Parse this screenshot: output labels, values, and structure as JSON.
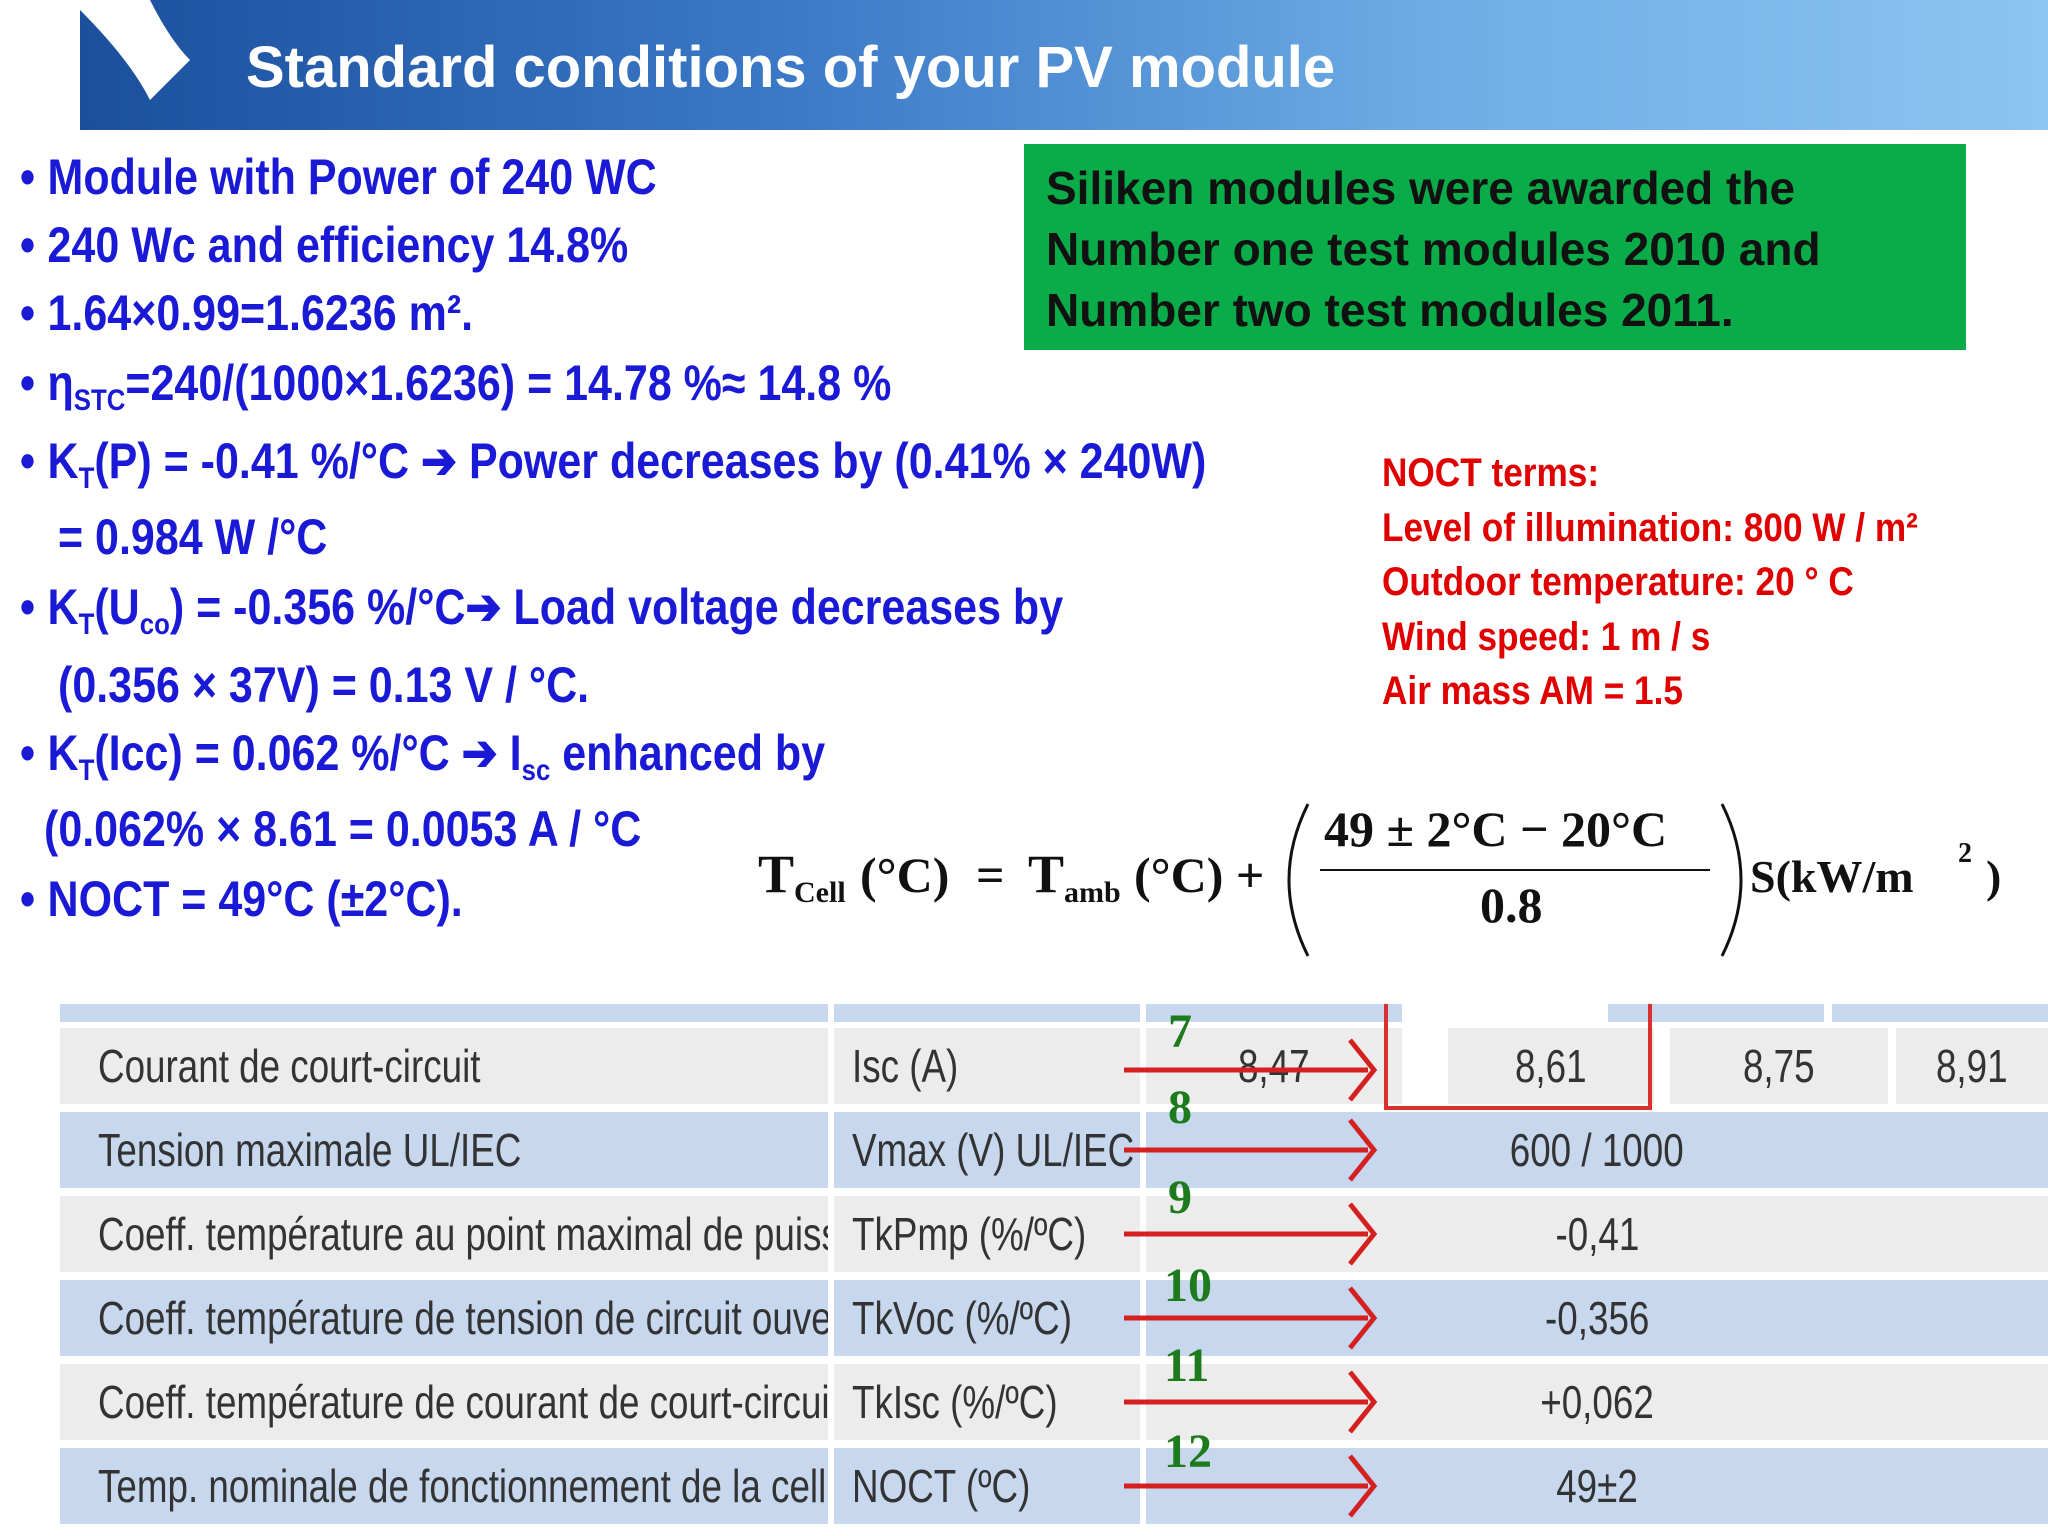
{
  "title": "Standard conditions of your PV module",
  "bullets": [
    {
      "text": "Module with Power of 240 WC"
    },
    {
      "text": "240 Wc and efficiency 14.8%"
    },
    {
      "text": "1.64×0.99=1.6236 m²."
    },
    {
      "pre": "η",
      "sub": "STC",
      "post": "=240/(1000×1.6236) = 14.78 %≈ 14.8 %"
    },
    {
      "pre": "K",
      "sub": "T",
      "post": "(P) = -0.41 %/°C ➔ Power decreases by (0.41% × 240W)"
    },
    {
      "text": "= 0.984  W /°C"
    },
    {
      "pre": "K",
      "sub": "T",
      "mid": "(U",
      "sub2": "co",
      "post": ") = -0.356 %/°C➔ Load voltage decreases by"
    },
    {
      "text": "(0.356 × 37V) = 0.13 V / °C."
    },
    {
      "pre": "K",
      "sub": "T",
      "mid": "(Icc) = 0.062 %/°C ➔ I",
      "sub2": "sc",
      "post": " enhanced by"
    },
    {
      "text": "(0.062% × 8.61 = 0.0053 A / °C"
    },
    {
      "text": "NOCT = 49°C (±2°C)."
    }
  ],
  "award": {
    "line1": "Siliken modules were awarded the",
    "line2": "Number one test modules 2010 and",
    "line3": "Number two test modules 2011."
  },
  "noct_terms": {
    "heading": "NOCT terms:",
    "lines": [
      "Level of illumination: 800 W / m²",
      "Outdoor temperature: 20 ° C",
      "Wind speed: 1 m / s",
      "Air mass AM = 1.5"
    ]
  },
  "formula": {
    "lhs_T": "T",
    "lhs_sub": "Cell",
    "lhs_unit": "(°C)",
    "eq": "=",
    "amb_T": "T",
    "amb_sub": "amb",
    "amb_unit": "(°C) +",
    "numerator": "49 ± 2°C − 20°C",
    "denominator": "0.8",
    "tail": "S(kW/m",
    "tail_sup": "2",
    "tail_end": ")"
  },
  "table": {
    "rows": [
      {
        "label": "Courant de court-circuit",
        "symbol": "Isc (A)",
        "values": [
          "8,47",
          "8,61",
          "8,75",
          "8,91"
        ]
      },
      {
        "label": "Tension maximale UL/IEC",
        "symbol": "Vmax (V) UL/IEC",
        "value": "600 / 1000"
      },
      {
        "label": "Coeff. température au point maximal de puissance",
        "symbol": "TkPmp (%/ºC)",
        "value": "-0,41"
      },
      {
        "label": "Coeff. température de tension de circuit ouvert",
        "symbol": "TkVoc (%/ºC)",
        "value": "-0,356"
      },
      {
        "label": "Coeff. température de courant de court-circuit",
        "symbol": "TkIsc (%/ºC)",
        "value": "+0,062"
      },
      {
        "label": "Temp. nominale de fonctionnement de la cellule",
        "symbol": "NOCT (ºC)",
        "value": "49±2"
      }
    ],
    "markers": [
      "7",
      "8",
      "9",
      "10",
      "11",
      "12"
    ]
  }
}
